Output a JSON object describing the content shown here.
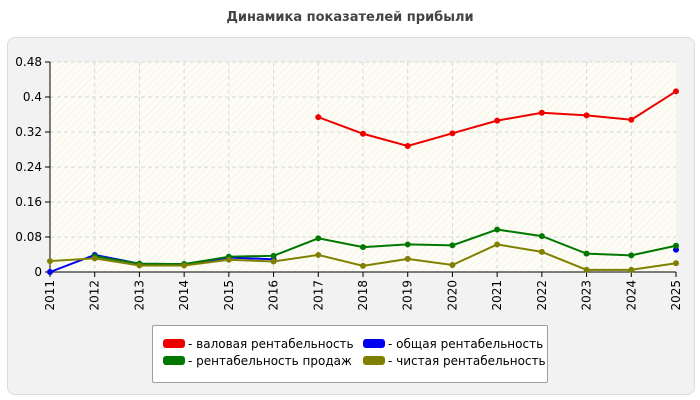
{
  "title": "Динамика показателей прибыли",
  "chart_data": {
    "type": "line",
    "title": "Динамика показателей прибыли",
    "xlabel": "",
    "ylabel": "",
    "x": [
      "2011",
      "2012",
      "2013",
      "2014",
      "2015",
      "2016",
      "2017",
      "2018",
      "2019",
      "2020",
      "2021",
      "2022",
      "2023",
      "2024",
      "2025"
    ],
    "ylim": [
      0,
      0.48
    ],
    "yticks": [
      "0",
      "0.08",
      "0.16",
      "0.24",
      "0.32",
      "0.4",
      "0.48"
    ],
    "grid": true,
    "legend_position": "bottom",
    "series": [
      {
        "name": "- валовая рентабельность",
        "color": "#ee0000",
        "values": [
          null,
          null,
          null,
          null,
          null,
          null,
          0.354,
          0.316,
          0.288,
          0.317,
          0.346,
          0.364,
          0.358,
          0.348,
          0.413
        ]
      },
      {
        "name": "- общая рентабельность",
        "color": "#0000ee",
        "values": [
          0.0,
          0.039,
          0.019,
          0.018,
          0.033,
          0.029,
          null,
          null,
          null,
          null,
          null,
          null,
          null,
          null,
          0.051
        ]
      },
      {
        "name": "- рентабельность продаж",
        "color": "#007700",
        "values": [
          null,
          0.036,
          0.019,
          0.018,
          0.035,
          0.037,
          0.077,
          0.057,
          0.063,
          0.061,
          0.097,
          0.082,
          0.042,
          0.038,
          0.06
        ]
      },
      {
        "name": "- чистая рентабельность",
        "color": "#808000",
        "values": [
          0.025,
          0.031,
          0.015,
          0.015,
          0.028,
          0.024,
          0.039,
          0.014,
          0.03,
          0.016,
          0.063,
          0.046,
          0.005,
          0.005,
          0.02
        ]
      }
    ]
  }
}
